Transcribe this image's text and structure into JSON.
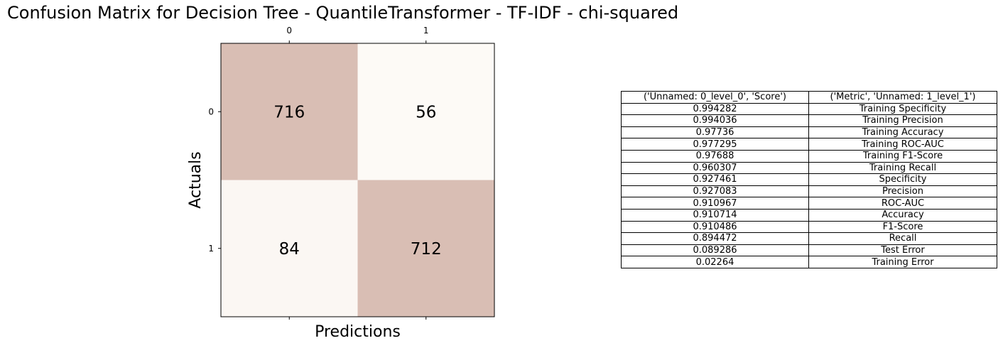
{
  "chart_data": [
    {
      "type": "heatmap",
      "title": "Confusion Matrix for Decision Tree - QuantileTransformer - TF-IDF - chi-squared",
      "xlabel": "Predictions",
      "ylabel": "Actuals",
      "x_categories": [
        "0",
        "1"
      ],
      "y_categories": [
        "0",
        "1"
      ],
      "values": [
        [
          716,
          56
        ],
        [
          84,
          712
        ]
      ],
      "colors": {
        "high": "#d9beb4",
        "low": "#fdfaf6",
        "text": "#000000"
      }
    },
    {
      "type": "table",
      "columns": [
        "('Unnamed: 0_level_0', 'Score')",
        "('Metric', 'Unnamed: 1_level_1')"
      ],
      "rows": [
        [
          "0.994282",
          "Training Specificity"
        ],
        [
          "0.994036",
          "Training Precision"
        ],
        [
          "0.97736",
          "Training Accuracy"
        ],
        [
          "0.977295",
          "Training ROC-AUC"
        ],
        [
          "0.97688",
          "Training F1-Score"
        ],
        [
          "0.960307",
          "Training Recall"
        ],
        [
          "0.927461",
          "Specificity"
        ],
        [
          "0.927083",
          "Precision"
        ],
        [
          "0.910967",
          "ROC-AUC"
        ],
        [
          "0.910714",
          "Accuracy"
        ],
        [
          "0.910486",
          "F1-Score"
        ],
        [
          "0.894472",
          "Recall"
        ],
        [
          "0.089286",
          "Test Error"
        ],
        [
          "0.02264",
          "Training Error"
        ]
      ]
    }
  ]
}
